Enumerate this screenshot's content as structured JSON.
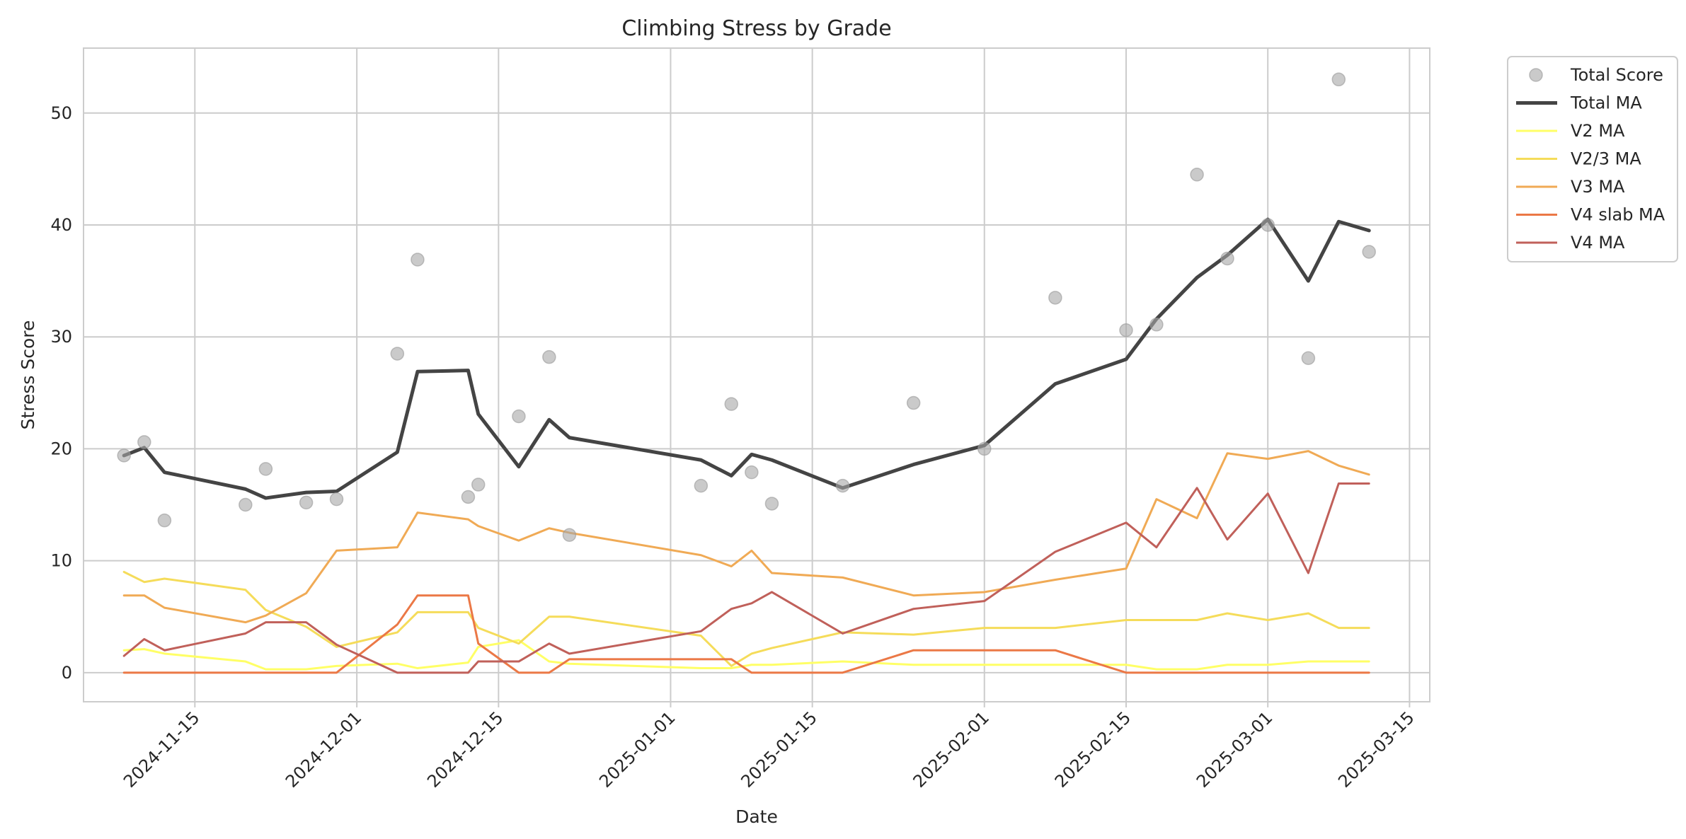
{
  "chart_data": {
    "type": "line",
    "title": "Climbing Stress by Grade",
    "xlabel": "Date",
    "ylabel": "Stress Score",
    "x_type": "date",
    "xlim": [
      "2024-11-04",
      "2025-03-17"
    ],
    "ylim": [
      -2.6,
      55.8
    ],
    "x_ticks": [
      "2024-11-15",
      "2024-12-01",
      "2024-12-15",
      "2025-01-01",
      "2025-01-15",
      "2025-02-01",
      "2025-02-15",
      "2025-03-01",
      "2025-03-15"
    ],
    "y_ticks": [
      0,
      10,
      20,
      30,
      40,
      50
    ],
    "grid": true,
    "legend_position": "outside-upper-right",
    "scatter": {
      "name": "Total Score",
      "color": "#a6a6a6",
      "x": [
        "2024-11-08",
        "2024-11-10",
        "2024-11-12",
        "2024-11-20",
        "2024-11-22",
        "2024-11-26",
        "2024-11-29",
        "2024-12-05",
        "2024-12-07",
        "2024-12-12",
        "2024-12-13",
        "2024-12-17",
        "2024-12-20",
        "2024-12-22",
        "2025-01-04",
        "2025-01-07",
        "2025-01-09",
        "2025-01-11",
        "2025-01-18",
        "2025-01-25",
        "2025-02-01",
        "2025-02-08",
        "2025-02-15",
        "2025-02-18",
        "2025-02-22",
        "2025-02-25",
        "2025-03-01",
        "2025-03-05",
        "2025-03-08",
        "2025-03-11"
      ],
      "y": [
        19.4,
        20.6,
        13.6,
        15.0,
        18.2,
        15.2,
        15.5,
        28.5,
        36.9,
        15.7,
        16.8,
        22.9,
        28.2,
        12.3,
        16.7,
        24.0,
        17.9,
        15.1,
        16.7,
        24.1,
        20.0,
        33.5,
        30.6,
        31.1,
        44.5,
        37.0,
        40.0,
        28.1,
        53.0,
        37.6
      ]
    },
    "series": [
      {
        "name": "Total MA",
        "color": "#444444",
        "width": 5,
        "x": [
          "2024-11-08",
          "2024-11-10",
          "2024-11-12",
          "2024-11-20",
          "2024-11-22",
          "2024-11-26",
          "2024-11-29",
          "2024-12-05",
          "2024-12-07",
          "2024-12-12",
          "2024-12-13",
          "2024-12-17",
          "2024-12-20",
          "2024-12-22",
          "2025-01-04",
          "2025-01-07",
          "2025-01-09",
          "2025-01-11",
          "2025-01-18",
          "2025-01-25",
          "2025-02-01",
          "2025-02-08",
          "2025-02-15",
          "2025-02-18",
          "2025-02-22",
          "2025-02-25",
          "2025-03-01",
          "2025-03-05",
          "2025-03-08",
          "2025-03-11"
        ],
        "values": [
          19.4,
          20.1,
          17.9,
          16.4,
          15.6,
          16.1,
          16.2,
          19.7,
          26.9,
          27.0,
          23.1,
          18.4,
          22.6,
          21.0,
          19.0,
          17.6,
          19.5,
          19.0,
          16.5,
          18.6,
          20.3,
          25.8,
          28.0,
          31.6,
          35.3,
          37.3,
          40.5,
          35.0,
          40.3,
          39.5
        ]
      },
      {
        "name": "V2 MA",
        "color": "#ffff66",
        "width": 3,
        "x": [
          "2024-11-08",
          "2024-11-10",
          "2024-11-12",
          "2024-11-20",
          "2024-11-22",
          "2024-11-26",
          "2024-11-29",
          "2024-12-05",
          "2024-12-07",
          "2024-12-12",
          "2024-12-13",
          "2024-12-17",
          "2024-12-20",
          "2024-12-22",
          "2025-01-04",
          "2025-01-07",
          "2025-01-09",
          "2025-01-11",
          "2025-01-18",
          "2025-01-25",
          "2025-02-01",
          "2025-02-08",
          "2025-02-15",
          "2025-02-18",
          "2025-02-22",
          "2025-02-25",
          "2025-03-01",
          "2025-03-05",
          "2025-03-08",
          "2025-03-11"
        ],
        "values": [
          2.0,
          2.1,
          1.7,
          1.0,
          0.3,
          0.3,
          0.6,
          0.8,
          0.4,
          0.9,
          2.3,
          2.9,
          1.0,
          0.8,
          0.4,
          0.4,
          0.7,
          0.7,
          1.0,
          0.7,
          0.7,
          0.7,
          0.7,
          0.3,
          0.3,
          0.7,
          0.7,
          1.0,
          1.0,
          1.0
        ]
      },
      {
        "name": "V2/3 MA",
        "color": "#f5dc5a",
        "width": 3,
        "x": [
          "2024-11-08",
          "2024-11-10",
          "2024-11-12",
          "2024-11-20",
          "2024-11-22",
          "2024-11-26",
          "2024-11-29",
          "2024-12-05",
          "2024-12-07",
          "2024-12-12",
          "2024-12-13",
          "2024-12-17",
          "2024-12-20",
          "2024-12-22",
          "2025-01-04",
          "2025-01-07",
          "2025-01-09",
          "2025-01-11",
          "2025-01-18",
          "2025-01-25",
          "2025-02-01",
          "2025-02-08",
          "2025-02-15",
          "2025-02-18",
          "2025-02-22",
          "2025-02-25",
          "2025-03-01",
          "2025-03-05",
          "2025-03-08",
          "2025-03-11"
        ],
        "values": [
          9.0,
          8.1,
          8.4,
          7.4,
          5.6,
          4.1,
          2.3,
          3.6,
          5.4,
          5.4,
          4.0,
          2.6,
          5.0,
          5.0,
          3.3,
          0.6,
          1.7,
          2.2,
          3.6,
          3.4,
          4.0,
          4.0,
          4.7,
          4.7,
          4.7,
          5.3,
          4.7,
          5.3,
          4.0,
          4.0
        ]
      },
      {
        "name": "V3 MA",
        "color": "#f0aa55",
        "width": 3,
        "x": [
          "2024-11-08",
          "2024-11-10",
          "2024-11-12",
          "2024-11-20",
          "2024-11-22",
          "2024-11-26",
          "2024-11-29",
          "2024-12-05",
          "2024-12-07",
          "2024-12-12",
          "2024-12-13",
          "2024-12-17",
          "2024-12-20",
          "2024-12-22",
          "2025-01-04",
          "2025-01-07",
          "2025-01-09",
          "2025-01-11",
          "2025-01-18",
          "2025-01-25",
          "2025-02-01",
          "2025-02-08",
          "2025-02-15",
          "2025-02-18",
          "2025-02-22",
          "2025-02-25",
          "2025-03-01",
          "2025-03-05",
          "2025-03-08",
          "2025-03-11"
        ],
        "values": [
          6.9,
          6.9,
          5.8,
          4.5,
          5.1,
          7.1,
          10.9,
          11.2,
          14.3,
          13.7,
          13.1,
          11.8,
          12.9,
          12.5,
          10.5,
          9.5,
          10.9,
          8.9,
          8.5,
          6.9,
          7.2,
          8.3,
          9.3,
          15.5,
          13.8,
          19.6,
          19.1,
          19.8,
          18.5,
          17.7
        ]
      },
      {
        "name": "V4 slab MA",
        "color": "#eb7846",
        "width": 3,
        "x": [
          "2024-11-08",
          "2024-11-10",
          "2024-11-12",
          "2024-11-20",
          "2024-11-22",
          "2024-11-26",
          "2024-11-29",
          "2024-12-05",
          "2024-12-07",
          "2024-12-12",
          "2024-12-13",
          "2024-12-17",
          "2024-12-20",
          "2024-12-22",
          "2025-01-04",
          "2025-01-07",
          "2025-01-09",
          "2025-01-11",
          "2025-01-18",
          "2025-01-25",
          "2025-02-01",
          "2025-02-08",
          "2025-02-15",
          "2025-02-18",
          "2025-02-22",
          "2025-02-25",
          "2025-03-01",
          "2025-03-05",
          "2025-03-08",
          "2025-03-11"
        ],
        "values": [
          0,
          0,
          0,
          0,
          0,
          0,
          0,
          4.3,
          6.9,
          6.9,
          2.6,
          0,
          0,
          1.2,
          1.2,
          1.2,
          0,
          0,
          0,
          2.0,
          2.0,
          2.0,
          0,
          0,
          0,
          0,
          0,
          0,
          0,
          0
        ]
      },
      {
        "name": "V4 MA",
        "color": "#c0605a",
        "width": 3,
        "x": [
          "2024-11-08",
          "2024-11-10",
          "2024-11-12",
          "2024-11-20",
          "2024-11-22",
          "2024-11-26",
          "2024-11-29",
          "2024-12-05",
          "2024-12-07",
          "2024-12-12",
          "2024-12-13",
          "2024-12-17",
          "2024-12-20",
          "2024-12-22",
          "2025-01-04",
          "2025-01-07",
          "2025-01-09",
          "2025-01-11",
          "2025-01-18",
          "2025-01-25",
          "2025-02-01",
          "2025-02-08",
          "2025-02-15",
          "2025-02-18",
          "2025-02-22",
          "2025-02-25",
          "2025-03-01",
          "2025-03-05",
          "2025-03-08",
          "2025-03-11"
        ],
        "values": [
          1.5,
          3.0,
          2.0,
          3.5,
          4.5,
          4.5,
          2.5,
          0,
          0,
          0,
          1.0,
          1.0,
          2.6,
          1.7,
          3.7,
          5.7,
          6.2,
          7.2,
          3.5,
          5.7,
          6.4,
          10.8,
          13.4,
          11.2,
          16.5,
          11.9,
          16.0,
          8.9,
          16.9,
          16.9
        ]
      }
    ]
  }
}
